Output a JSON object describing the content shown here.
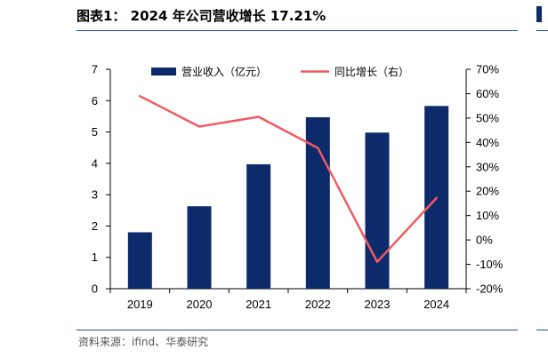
{
  "header": {
    "title": "图表1： 2024 年公司营收增长 17.21%"
  },
  "footer": {
    "source": "资料来源：ifind、华泰研究"
  },
  "chart_data": {
    "type": "bar",
    "title": "",
    "categories": [
      "2019",
      "2020",
      "2021",
      "2022",
      "2023",
      "2024"
    ],
    "series": [
      {
        "name": "营业收入（亿元）",
        "kind": "bar",
        "axis": "left",
        "color": "#0d2a6b",
        "values": [
          1.8,
          2.63,
          3.97,
          5.47,
          4.98,
          5.83
        ]
      },
      {
        "name": "同比增长（右）",
        "kind": "line",
        "axis": "right",
        "color": "#f15b61",
        "values": [
          0.59,
          0.465,
          0.505,
          0.377,
          -0.09,
          0.1721
        ]
      }
    ],
    "left_axis": {
      "min": 0,
      "max": 7,
      "ticks": [
        "0",
        "1",
        "2",
        "3",
        "4",
        "5",
        "6",
        "7"
      ]
    },
    "right_axis": {
      "min": -0.2,
      "max": 0.7,
      "ticks": [
        "-20%",
        "-10%",
        "0%",
        "10%",
        "20%",
        "30%",
        "40%",
        "50%",
        "60%",
        "70%"
      ]
    },
    "grid": false,
    "legend": "top"
  }
}
